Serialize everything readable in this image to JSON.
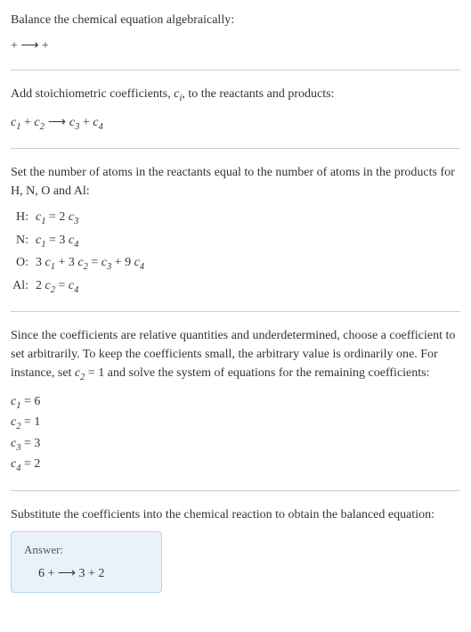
{
  "section1": {
    "heading": "Balance the chemical equation algebraically:",
    "equation": " +  ⟶  + "
  },
  "section2": {
    "heading_pre": "Add stoichiometric coefficients, ",
    "heading_var": "c",
    "heading_sub": "i",
    "heading_post": ", to the reactants and products:",
    "eq_parts": {
      "c1": "c",
      "s1": "1",
      "plus1": " + ",
      "c2": "c",
      "s2": "2",
      "arrow": " ⟶ ",
      "c3": "c",
      "s3": "3",
      "plus2": " + ",
      "c4": "c",
      "s4": "4"
    }
  },
  "section3": {
    "heading": "Set the number of atoms in the reactants equal to the number of atoms in the products for H, N, O and Al:",
    "rows": [
      {
        "label": "H:",
        "c_a": "c",
        "s_a": "1",
        "mid": " = 2 ",
        "c_b": "c",
        "s_b": "3",
        "tail": ""
      },
      {
        "label": "N:",
        "c_a": "c",
        "s_a": "1",
        "mid": " = 3 ",
        "c_b": "c",
        "s_b": "4",
        "tail": ""
      },
      {
        "label": "O:",
        "pre": "3 ",
        "c_a": "c",
        "s_a": "1",
        "plus": " + 3 ",
        "c_b": "c",
        "s_b": "2",
        "eq": " = ",
        "c_c": "c",
        "s_c": "3",
        "plus2": " + 9 ",
        "c_d": "c",
        "s_d": "4"
      },
      {
        "label": "Al:",
        "pre": "2 ",
        "c_a": "c",
        "s_a": "2",
        "eq": " = ",
        "c_b": "c",
        "s_b": "4"
      }
    ]
  },
  "section4": {
    "heading_pre": "Since the coefficients are relative quantities and underdetermined, choose a coefficient to set arbitrarily. To keep the coefficients small, the arbitrary value is ordinarily one. For instance, set ",
    "heading_var": "c",
    "heading_sub": "2",
    "heading_post": " = 1 and solve the system of equations for the remaining coefficients:",
    "coeffs": [
      {
        "c": "c",
        "s": "1",
        "eq": " = 6"
      },
      {
        "c": "c",
        "s": "2",
        "eq": " = 1"
      },
      {
        "c": "c",
        "s": "3",
        "eq": " = 3"
      },
      {
        "c": "c",
        "s": "4",
        "eq": " = 2"
      }
    ]
  },
  "section5": {
    "heading": "Substitute the coefficients into the chemical reaction to obtain the balanced equation:"
  },
  "answer": {
    "label": "Answer:",
    "content": "6  +  ⟶ 3  + 2 "
  },
  "colors": {
    "text": "#333333",
    "divider": "#cccccc",
    "answer_bg": "#eaf2f9",
    "answer_border": "#b8d0e8",
    "answer_label": "#555555"
  }
}
